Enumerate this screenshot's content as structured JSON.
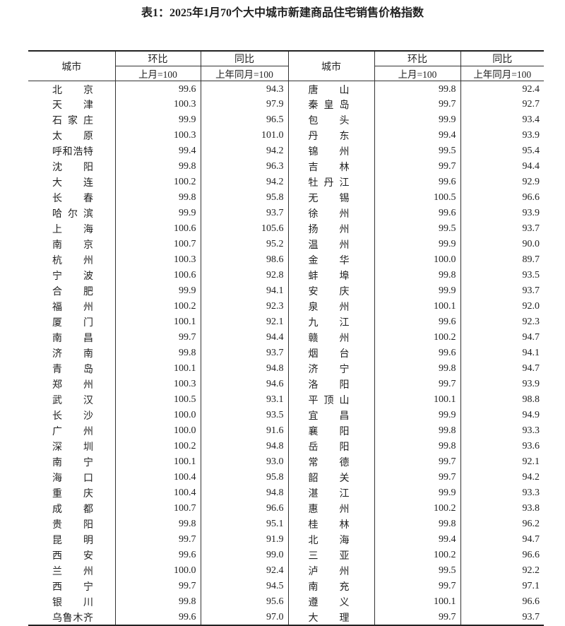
{
  "title": "表1：2025年1月70个大中城市新建商品住宅销售价格指数",
  "header": {
    "city": "城市",
    "mom": "环比",
    "yoy": "同比",
    "mom_base": "上月=100",
    "yoy_base": "上年同月=100"
  },
  "rows": [
    [
      [
        "北京",
        "99.6",
        "94.3"
      ],
      [
        "唐山",
        "99.8",
        "92.4"
      ]
    ],
    [
      [
        "天津",
        "100.3",
        "97.9"
      ],
      [
        "秦皇岛",
        "99.7",
        "92.7"
      ]
    ],
    [
      [
        "石家庄",
        "99.9",
        "96.5"
      ],
      [
        "包头",
        "99.9",
        "93.4"
      ]
    ],
    [
      [
        "太原",
        "100.3",
        "101.0"
      ],
      [
        "丹东",
        "99.4",
        "93.9"
      ]
    ],
    [
      [
        "呼和浩特",
        "99.4",
        "94.2"
      ],
      [
        "锦州",
        "99.5",
        "95.4"
      ]
    ],
    [
      [
        "沈阳",
        "99.8",
        "96.3"
      ],
      [
        "吉林",
        "99.7",
        "94.4"
      ]
    ],
    [
      [
        "大连",
        "100.2",
        "94.2"
      ],
      [
        "牡丹江",
        "99.6",
        "92.9"
      ]
    ],
    [
      [
        "长春",
        "99.8",
        "95.8"
      ],
      [
        "无锡",
        "100.5",
        "96.6"
      ]
    ],
    [
      [
        "哈尔滨",
        "99.9",
        "93.7"
      ],
      [
        "徐州",
        "99.6",
        "93.9"
      ]
    ],
    [
      [
        "上海",
        "100.6",
        "105.6"
      ],
      [
        "扬州",
        "99.5",
        "93.7"
      ]
    ],
    [
      [
        "南京",
        "100.7",
        "95.2"
      ],
      [
        "温州",
        "99.9",
        "90.0"
      ]
    ],
    [
      [
        "杭州",
        "100.3",
        "98.6"
      ],
      [
        "金华",
        "100.0",
        "89.7"
      ]
    ],
    [
      [
        "宁波",
        "100.6",
        "92.8"
      ],
      [
        "蚌埠",
        "99.8",
        "93.5"
      ]
    ],
    [
      [
        "合肥",
        "99.9",
        "94.1"
      ],
      [
        "安庆",
        "99.9",
        "93.7"
      ]
    ],
    [
      [
        "福州",
        "100.2",
        "92.3"
      ],
      [
        "泉州",
        "100.1",
        "92.0"
      ]
    ],
    [
      [
        "厦门",
        "100.1",
        "92.1"
      ],
      [
        "九江",
        "99.6",
        "92.3"
      ]
    ],
    [
      [
        "南昌",
        "99.7",
        "94.4"
      ],
      [
        "赣州",
        "100.2",
        "94.7"
      ]
    ],
    [
      [
        "济南",
        "99.8",
        "93.7"
      ],
      [
        "烟台",
        "99.6",
        "94.1"
      ]
    ],
    [
      [
        "青岛",
        "100.1",
        "94.8"
      ],
      [
        "济宁",
        "99.8",
        "94.7"
      ]
    ],
    [
      [
        "郑州",
        "100.3",
        "94.6"
      ],
      [
        "洛阳",
        "99.7",
        "93.9"
      ]
    ],
    [
      [
        "武汉",
        "100.5",
        "93.1"
      ],
      [
        "平顶山",
        "100.1",
        "98.8"
      ]
    ],
    [
      [
        "长沙",
        "100.0",
        "93.5"
      ],
      [
        "宜昌",
        "99.9",
        "94.9"
      ]
    ],
    [
      [
        "广州",
        "100.0",
        "91.6"
      ],
      [
        "襄阳",
        "99.8",
        "93.3"
      ]
    ],
    [
      [
        "深圳",
        "100.2",
        "94.8"
      ],
      [
        "岳阳",
        "99.8",
        "93.6"
      ]
    ],
    [
      [
        "南宁",
        "100.1",
        "93.0"
      ],
      [
        "常德",
        "99.7",
        "92.1"
      ]
    ],
    [
      [
        "海口",
        "100.4",
        "95.8"
      ],
      [
        "韶关",
        "99.7",
        "94.2"
      ]
    ],
    [
      [
        "重庆",
        "100.4",
        "94.8"
      ],
      [
        "湛江",
        "99.9",
        "93.3"
      ]
    ],
    [
      [
        "成都",
        "100.7",
        "96.6"
      ],
      [
        "惠州",
        "100.2",
        "93.8"
      ]
    ],
    [
      [
        "贵阳",
        "99.8",
        "95.1"
      ],
      [
        "桂林",
        "99.8",
        "96.2"
      ]
    ],
    [
      [
        "昆明",
        "99.7",
        "91.9"
      ],
      [
        "北海",
        "99.4",
        "94.7"
      ]
    ],
    [
      [
        "西安",
        "99.6",
        "99.0"
      ],
      [
        "三亚",
        "100.2",
        "96.6"
      ]
    ],
    [
      [
        "兰州",
        "100.0",
        "92.4"
      ],
      [
        "泸州",
        "99.5",
        "92.2"
      ]
    ],
    [
      [
        "西宁",
        "99.7",
        "94.5"
      ],
      [
        "南充",
        "99.7",
        "97.1"
      ]
    ],
    [
      [
        "银川",
        "99.8",
        "95.6"
      ],
      [
        "遵义",
        "100.1",
        "96.6"
      ]
    ],
    [
      [
        "乌鲁木齐",
        "99.6",
        "97.0"
      ],
      [
        "大理",
        "99.7",
        "93.7"
      ]
    ]
  ]
}
